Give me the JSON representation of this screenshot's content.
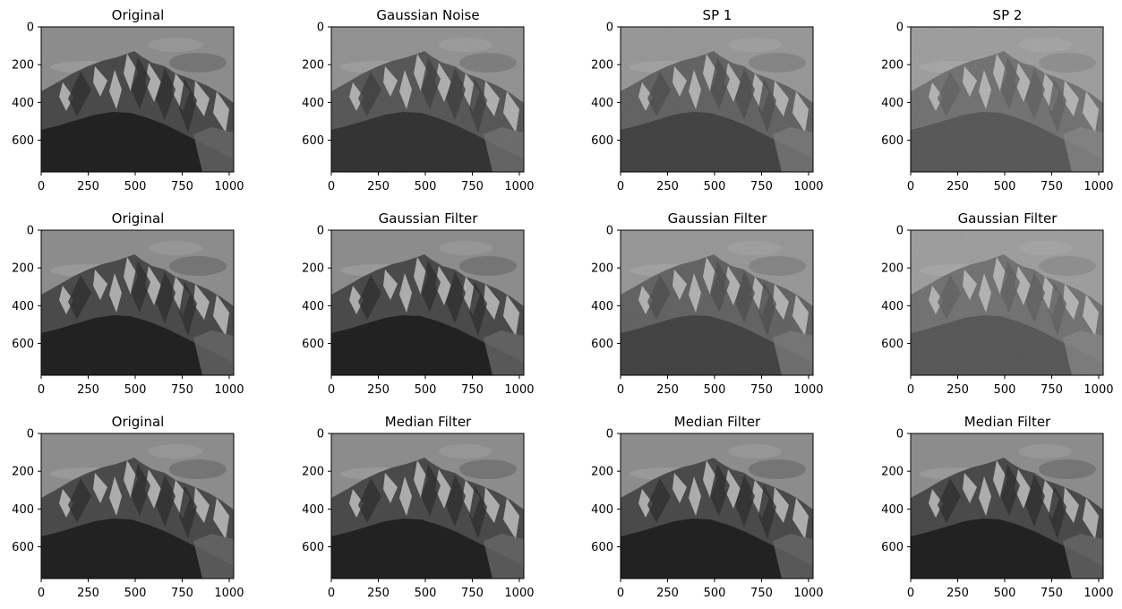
{
  "figure": {
    "grid": {
      "rows": 3,
      "cols": 4
    },
    "x_ticks": [
      "0",
      "250",
      "500",
      "750",
      "1000"
    ],
    "x_tick_values": [
      0,
      250,
      500,
      750,
      1000
    ],
    "y_ticks": [
      "0",
      "200",
      "400",
      "600"
    ],
    "y_tick_values": [
      0,
      200,
      400,
      600
    ],
    "image_extent": {
      "width": 1024,
      "height": 768
    },
    "colors": {
      "axis": "#000000",
      "background": "#ffffff"
    },
    "panels": [
      {
        "title": "Original",
        "content": "grayscale mountain photo",
        "noise": "none"
      },
      {
        "title": "Gaussian Noise",
        "content": "grayscale mountain photo",
        "noise": "gaussian-light"
      },
      {
        "title": "SP 1",
        "content": "grayscale mountain photo",
        "noise": "salt-pepper-light"
      },
      {
        "title": "SP 2",
        "content": "grayscale mountain photo",
        "noise": "salt-pepper-heavy"
      },
      {
        "title": "Original",
        "content": "grayscale mountain photo",
        "noise": "none"
      },
      {
        "title": "Gaussian Filter",
        "content": "grayscale mountain photo",
        "noise": "none"
      },
      {
        "title": "Gaussian Filter",
        "content": "grayscale mountain photo",
        "noise": "salt-pepper-light"
      },
      {
        "title": "Gaussian Filter",
        "content": "grayscale mountain photo",
        "noise": "salt-pepper-heavy"
      },
      {
        "title": "Original",
        "content": "grayscale mountain photo",
        "noise": "none"
      },
      {
        "title": "Median Filter",
        "content": "grayscale mountain photo",
        "noise": "none"
      },
      {
        "title": "Median Filter",
        "content": "grayscale mountain photo",
        "noise": "none"
      },
      {
        "title": "Median Filter",
        "content": "grayscale mountain photo",
        "noise": "none"
      }
    ]
  }
}
